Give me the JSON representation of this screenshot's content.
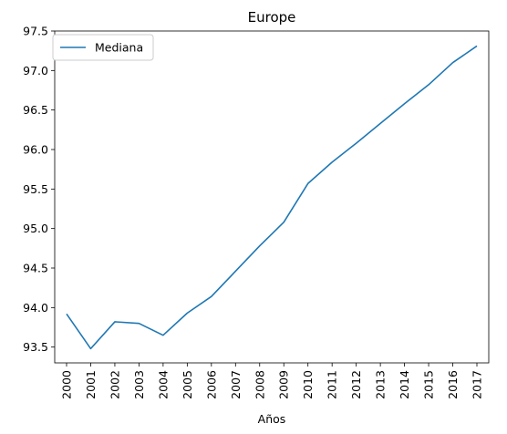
{
  "chart_data": {
    "type": "line",
    "title": "Europe",
    "xlabel": "Años",
    "ylabel": "",
    "categories": [
      "2000",
      "2001",
      "2002",
      "2003",
      "2004",
      "2005",
      "2006",
      "2007",
      "2008",
      "2009",
      "2010",
      "2011",
      "2012",
      "2013",
      "2014",
      "2015",
      "2016",
      "2017"
    ],
    "series": [
      {
        "name": "Mediana",
        "color": "#1f77b4",
        "values": [
          93.92,
          93.48,
          93.82,
          93.8,
          93.65,
          93.93,
          94.14,
          94.46,
          94.78,
          95.08,
          95.57,
          95.84,
          96.08,
          96.33,
          96.58,
          96.82,
          97.1,
          97.31
        ]
      }
    ],
    "ylim": [
      93.3,
      97.5
    ],
    "yticks": [
      "93.5",
      "94.0",
      "94.5",
      "95.0",
      "95.5",
      "96.0",
      "96.5",
      "97.0",
      "97.5"
    ],
    "grid": false,
    "legend_position": "top-left"
  }
}
